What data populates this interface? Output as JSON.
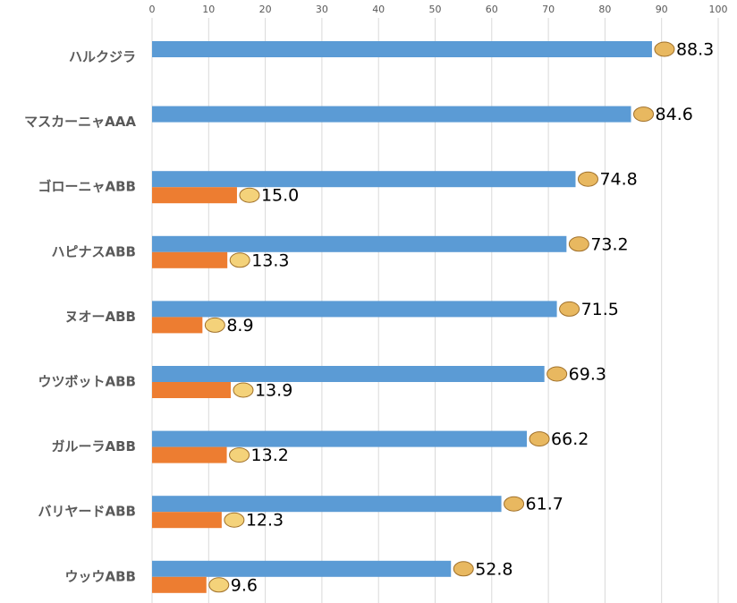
{
  "chart_data": {
    "type": "bar",
    "orientation": "horizontal",
    "categories": [
      "ハルクジラ",
      "マスカーニャAAA",
      "ゴローニャABB",
      "ハピナスABB",
      "ヌオーABB",
      "ウツボットABB",
      "ガルーラABB",
      "バリヤードABB",
      "ウッウABB"
    ],
    "series": [
      {
        "color": "#5b9bd5",
        "values": [
          88.3,
          84.6,
          74.8,
          73.2,
          71.5,
          69.3,
          66.2,
          61.7,
          52.8
        ],
        "value_labels": [
          "88.3",
          "84.6",
          "74.8",
          "73.2",
          "71.5",
          "69.3",
          "66.2",
          "61.7",
          "52.8"
        ]
      },
      {
        "color": "#ed7d31",
        "values": [
          null,
          null,
          15.0,
          13.3,
          8.9,
          13.9,
          13.2,
          12.3,
          9.6
        ],
        "value_labels": [
          null,
          null,
          "15.0",
          "13.3",
          "8.9",
          "13.9",
          "13.2",
          "12.3",
          "9.6"
        ]
      }
    ],
    "xlim": [
      0,
      100
    ],
    "xticks": [
      0,
      10,
      20,
      30,
      40,
      50,
      60,
      70,
      80,
      90,
      100
    ],
    "grid": true
  }
}
